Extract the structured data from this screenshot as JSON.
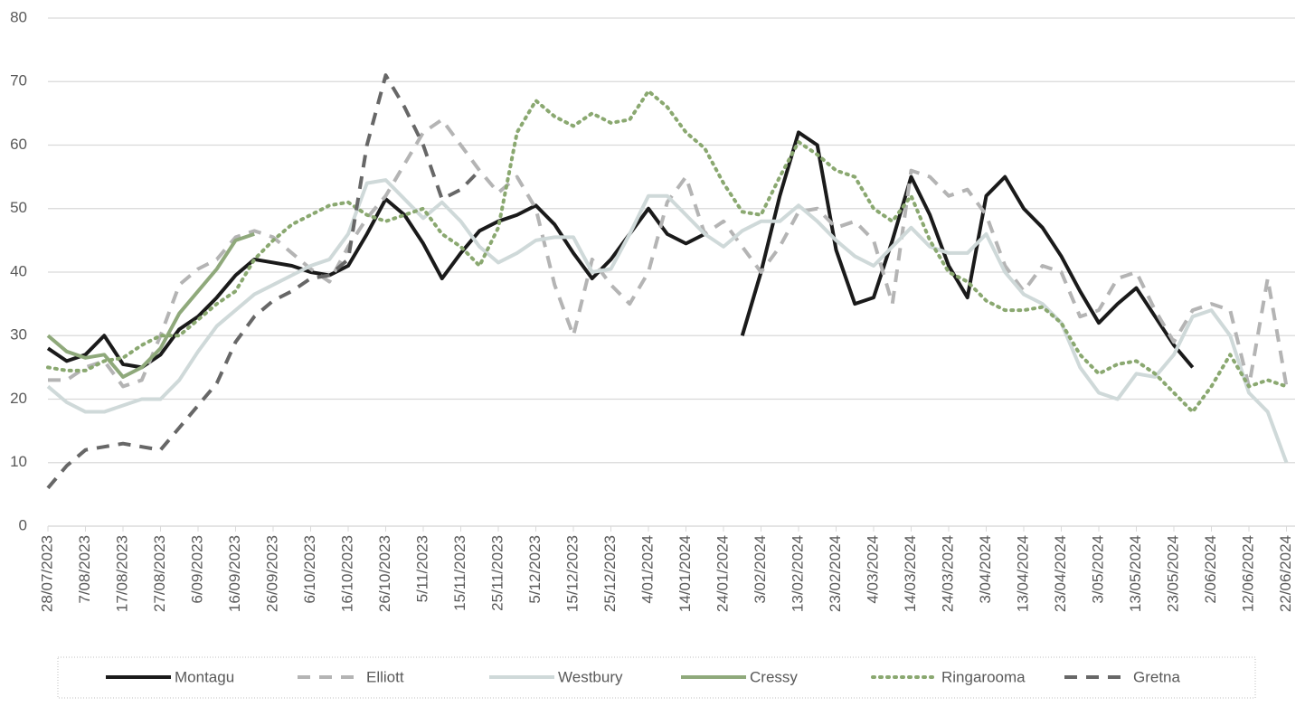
{
  "chart_data": {
    "type": "line",
    "categories": [
      "28/07/2023",
      null,
      "7/08/2023",
      null,
      "17/08/2023",
      null,
      "27/08/2023",
      null,
      "6/09/2023",
      null,
      "16/09/2023",
      null,
      "26/09/2023",
      null,
      "6/10/2023",
      null,
      "16/10/2023",
      null,
      "26/10/2023",
      null,
      "5/11/2023",
      null,
      "15/11/2023",
      null,
      "25/11/2023",
      null,
      "5/12/2023",
      null,
      "15/12/2023",
      null,
      "25/12/2023",
      null,
      "4/01/2024",
      null,
      "14/01/2024",
      null,
      "24/01/2024",
      null,
      "3/02/2024",
      null,
      "13/02/2024",
      null,
      "23/02/2024",
      null,
      "4/03/2024",
      null,
      "14/03/2024",
      null,
      "24/03/2024",
      null,
      "3/04/2024",
      null,
      "13/04/2024",
      null,
      "23/04/2024",
      null,
      "3/05/2024",
      null,
      "13/05/2024",
      null,
      "23/05/2024",
      null,
      "2/06/2024",
      null,
      "12/06/2024",
      null,
      "22/06/2024"
    ],
    "ylim": [
      0,
      80
    ],
    "yticks": [
      0,
      10,
      20,
      30,
      40,
      50,
      60,
      70,
      80
    ],
    "grid": true,
    "legend": "bottom",
    "series": [
      {
        "name": "Montagu",
        "color": "#1a1a1a",
        "dash": "solid",
        "values": [
          28,
          26,
          27,
          30,
          25.5,
          25,
          27,
          31,
          33,
          36,
          39.5,
          42,
          41.5,
          41,
          40,
          39.5,
          41,
          46,
          51.5,
          49,
          44.5,
          39,
          43,
          46.5,
          48,
          49,
          50.5,
          47.5,
          43,
          39,
          42,
          46,
          50,
          46,
          44.5,
          46,
          null,
          30,
          40,
          52,
          62,
          60,
          43.5,
          35,
          36,
          45,
          55,
          49,
          41,
          36,
          52,
          55,
          50,
          47,
          42.5,
          37,
          32,
          35,
          37.5,
          33,
          28.5,
          25,
          null,
          null,
          null,
          null,
          null
        ]
      },
      {
        "name": "Elliott",
        "color": "#b4b4b4",
        "dash": "dashed",
        "values": [
          23,
          23,
          25,
          26,
          22,
          23,
          30,
          38,
          40.5,
          42,
          45.5,
          46.5,
          45.5,
          43,
          40.5,
          38.5,
          44,
          48.5,
          52,
          57,
          62,
          64,
          60,
          56,
          52.5,
          55,
          50,
          38,
          30,
          42,
          38,
          35,
          40,
          51,
          55,
          46,
          48,
          44,
          40,
          44,
          49.5,
          50,
          47,
          48,
          45,
          35,
          56,
          55,
          52,
          53,
          49,
          41,
          37,
          41,
          40,
          33,
          34,
          39,
          40,
          34,
          29,
          34,
          35,
          34,
          22,
          39,
          22
        ]
      },
      {
        "name": "Westbury",
        "color": "#cfd9d9",
        "dash": "solid",
        "values": [
          22,
          19.5,
          18,
          18,
          19,
          20,
          20,
          23,
          27.5,
          31.5,
          34,
          36.5,
          38,
          39.5,
          41,
          42,
          46,
          54,
          54.5,
          51.5,
          48.5,
          51,
          48,
          44,
          41.5,
          43,
          45,
          45.5,
          45.5,
          40,
          40.5,
          46,
          52,
          52,
          49,
          46,
          44,
          46.5,
          48,
          48,
          50.5,
          48,
          45,
          42.5,
          41,
          44,
          47,
          44,
          43,
          43,
          46,
          40,
          36.5,
          35,
          32,
          25,
          21,
          20,
          24,
          23.5,
          27,
          33,
          34,
          30,
          21,
          18,
          10
        ]
      },
      {
        "name": "Cressy",
        "color": "#8fa97b",
        "dash": "solid",
        "values": [
          30,
          27.5,
          26.5,
          27,
          23.5,
          25,
          28,
          33.5,
          37,
          40.5,
          45,
          46,
          null,
          null,
          null,
          null,
          null,
          null,
          null,
          null,
          null,
          null,
          null,
          null,
          null,
          null,
          null,
          null,
          null,
          null,
          null,
          null,
          null,
          null,
          null,
          null,
          null,
          null,
          null,
          null,
          null,
          null,
          null,
          null,
          null,
          null,
          null,
          null,
          null,
          null,
          null,
          null,
          null,
          null,
          null,
          null,
          null,
          null,
          null,
          null,
          null,
          null,
          null,
          null,
          null,
          null,
          null
        ]
      },
      {
        "name": "Ringarooma",
        "color": "#8aa870",
        "dash": "dotted",
        "values": [
          25,
          24.5,
          24.5,
          26,
          26.5,
          28.5,
          30,
          30,
          32.5,
          35,
          37,
          42,
          45,
          47.5,
          49,
          50.5,
          51,
          49,
          48,
          49,
          50,
          46,
          44,
          41,
          47,
          62,
          67,
          64.5,
          63,
          65,
          63.5,
          64,
          68.5,
          66,
          62,
          59.5,
          54,
          49.5,
          49,
          55,
          60.5,
          58.5,
          56,
          55,
          50,
          48,
          52,
          45,
          40,
          38.5,
          35.5,
          34,
          34,
          34.5,
          32,
          27,
          24,
          25.5,
          26,
          24,
          21,
          18,
          22,
          27,
          22,
          23,
          22
        ]
      },
      {
        "name": "Gretna",
        "color": "#676767",
        "dash": "dashed",
        "values": [
          6,
          9.5,
          12,
          12.5,
          13,
          12.5,
          12,
          15.5,
          19,
          22.5,
          29,
          33,
          35.5,
          37,
          39,
          39.5,
          42,
          60,
          71,
          66,
          60,
          51.5,
          53,
          56,
          null,
          null,
          null,
          null,
          null,
          null,
          null,
          null,
          null,
          null,
          null,
          null,
          null,
          null,
          null,
          null,
          null,
          null,
          null,
          null,
          null,
          null,
          null,
          null,
          null,
          null,
          null,
          null,
          null,
          null,
          null,
          null,
          null,
          null,
          null,
          null,
          null,
          null,
          null,
          null,
          null,
          null,
          null
        ]
      }
    ]
  }
}
